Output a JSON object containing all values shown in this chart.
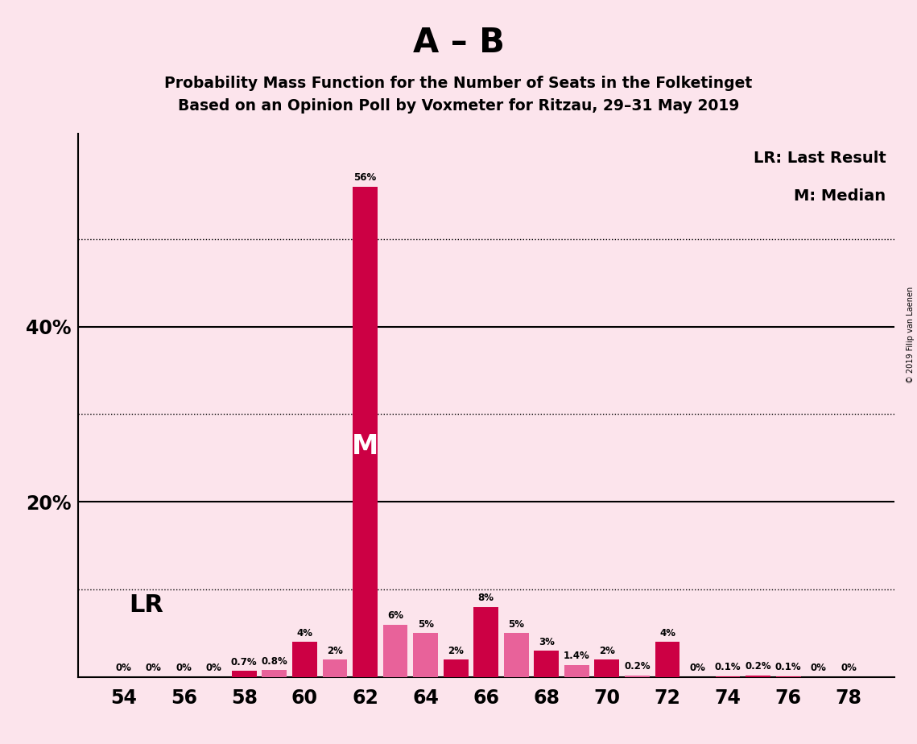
{
  "title_main": "A – B",
  "title_sub1": "Probability Mass Function for the Number of Seats in the Folketinget",
  "title_sub2": "Based on an Opinion Poll by Voxmeter for Ritzau, 29–31 May 2019",
  "copyright": "© 2019 Filip van Laenen",
  "legend_line1": "LR: Last Result",
  "legend_line2": "M: Median",
  "lr_label": "LR",
  "median_label": "M",
  "median_seat": 62,
  "background_color": "#fce4ec",
  "bar_color_red": "#CC0044",
  "bar_color_pink": "#E8629A",
  "xlim": [
    52.5,
    79.5
  ],
  "ylim": [
    0,
    62
  ],
  "dotted_yticks": [
    10,
    30,
    50
  ],
  "solid_yticks": [
    20,
    40
  ],
  "solid_ytick_labels": [
    "20%",
    "40%"
  ],
  "xticks": [
    54,
    56,
    58,
    60,
    62,
    64,
    66,
    68,
    70,
    72,
    74,
    76,
    78
  ],
  "seats": [
    54,
    55,
    56,
    57,
    58,
    59,
    60,
    61,
    62,
    63,
    64,
    65,
    66,
    67,
    68,
    69,
    70,
    71,
    72,
    73,
    74,
    75,
    76,
    77,
    78
  ],
  "values": [
    0.0,
    0.0,
    0.0,
    0.0,
    0.7,
    0.8,
    4.0,
    2.0,
    56.0,
    6.0,
    5.0,
    2.0,
    8.0,
    5.0,
    3.0,
    1.4,
    2.0,
    0.2,
    4.0,
    0.0,
    0.1,
    0.2,
    0.1,
    0.0,
    0.0
  ],
  "bar_colors": [
    "#CC0044",
    "#CC0044",
    "#CC0044",
    "#CC0044",
    "#CC0044",
    "#E8629A",
    "#CC0044",
    "#E8629A",
    "#CC0044",
    "#E8629A",
    "#E8629A",
    "#CC0044",
    "#CC0044",
    "#E8629A",
    "#CC0044",
    "#E8629A",
    "#CC0044",
    "#E8629A",
    "#CC0044",
    "#CC0044",
    "#CC0044",
    "#CC0044",
    "#CC0044",
    "#CC0044",
    "#CC0044"
  ],
  "bar_labels": [
    "0%",
    "0%",
    "0%",
    "0%",
    "0.7%",
    "0.8%",
    "4%",
    "2%",
    "56%",
    "6%",
    "5%",
    "2%",
    "8%",
    "5%",
    "3%",
    "1.4%",
    "2%",
    "0.2%",
    "4%",
    "0%",
    "0.1%",
    "0.2%",
    "0.1%",
    "0%",
    "0%"
  ],
  "show_label": [
    true,
    true,
    true,
    true,
    true,
    true,
    true,
    true,
    true,
    true,
    true,
    true,
    true,
    true,
    true,
    true,
    true,
    true,
    true,
    true,
    true,
    true,
    true,
    true,
    true
  ]
}
